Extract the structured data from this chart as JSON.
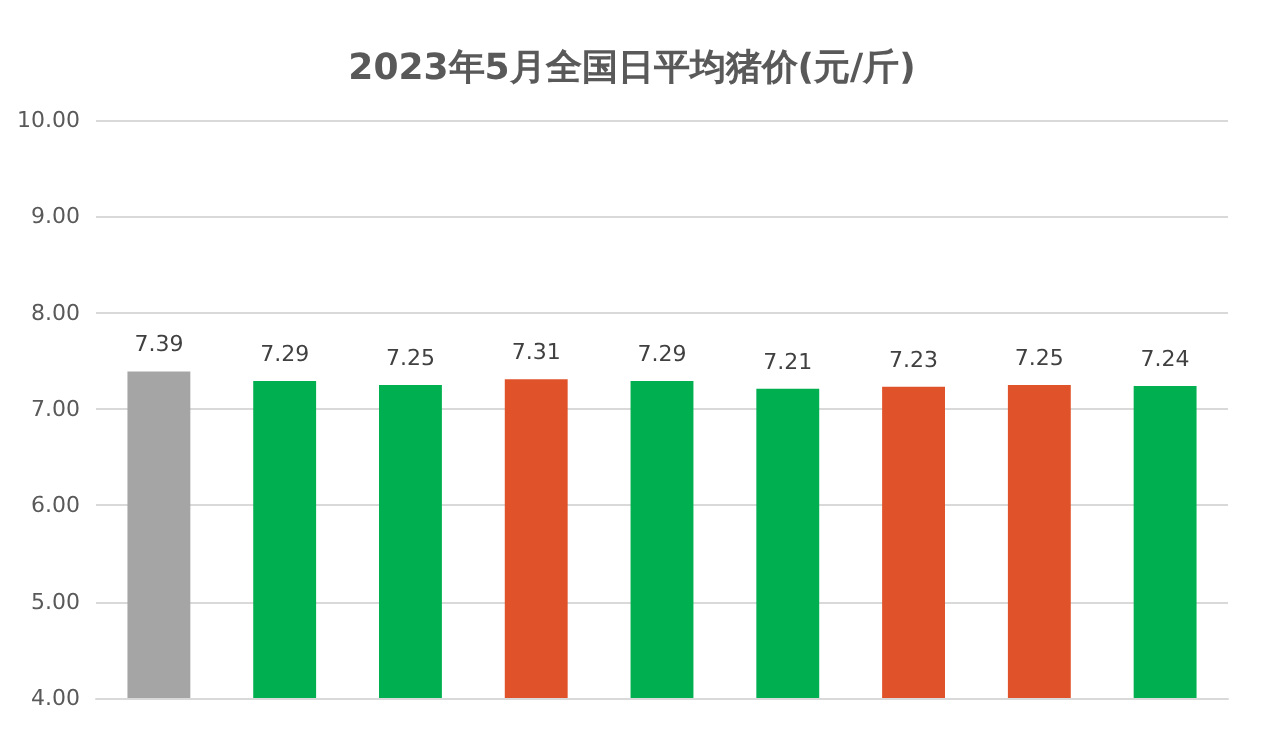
{
  "chart_data": {
    "type": "bar",
    "title": "2023年5月全国日平均猪价(元/斤)",
    "categories": [
      null,
      null,
      null,
      null,
      null,
      null,
      null,
      null,
      null
    ],
    "values": [
      7.39,
      7.29,
      7.25,
      7.31,
      7.29,
      7.21,
      7.23,
      7.25,
      7.24
    ],
    "colors": [
      "#a5a5a5",
      "#00b050",
      "#00b050",
      "#e0532a",
      "#00b050",
      "#00b050",
      "#e0532a",
      "#e0532a",
      "#00b050"
    ],
    "ylim": [
      4,
      10
    ],
    "yticks": [
      {
        "value": 4,
        "label": "4.00"
      },
      {
        "value": 5,
        "label": "5.00"
      },
      {
        "value": 6,
        "label": "6.00"
      },
      {
        "value": 7,
        "label": "7.00"
      },
      {
        "value": 8,
        "label": "8.00"
      },
      {
        "value": 9,
        "label": "9.00"
      },
      {
        "value": 10,
        "label": "10.00"
      }
    ],
    "grid": "y",
    "data_labels": true
  }
}
